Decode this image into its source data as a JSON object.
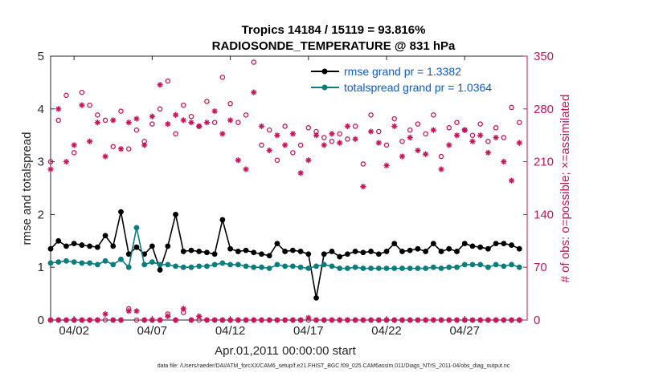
{
  "chart_data": {
    "type": "line",
    "title": "Tropics 14184 / 15119 = 93.816%",
    "subtitle": "RADIOSONDE_TEMPERATURE @ 831 hPa",
    "xlabel": "Apr.01,2011 00:00:00 start",
    "ylabel": "rmse and totalspread",
    "ylabel_right": "# of obs: o=possible; ×=assimilated",
    "footnote": "data file: /Users/raeder/DAI/ATM_forcXX/CAM6_setup/f.e21.FHIST_BGC.f09_025.CAM6assim.011/Diags_NTrS_2011-04/obs_diag_output.nc",
    "xlim": [
      0.5,
      31
    ],
    "ylim": [
      0,
      5
    ],
    "ylim_right": [
      0,
      350
    ],
    "x_ticks": [
      2,
      7,
      12,
      17,
      22,
      27
    ],
    "x_tick_labels": [
      "04/02",
      "04/07",
      "04/12",
      "04/17",
      "04/22",
      "04/27"
    ],
    "y_ticks": [
      0,
      1,
      2,
      3,
      4,
      5
    ],
    "y_ticks_right": [
      0,
      70,
      140,
      210,
      280,
      350
    ],
    "x": [
      0.5,
      1,
      1.5,
      2,
      2.5,
      3,
      3.5,
      4,
      4.5,
      5,
      5.5,
      6,
      6.5,
      7,
      7.5,
      8,
      8.5,
      9,
      9.5,
      10,
      10.5,
      11,
      11.5,
      12,
      12.5,
      13,
      13.5,
      14,
      14.5,
      15,
      15.5,
      16,
      16.5,
      17,
      17.5,
      18,
      18.5,
      19,
      19.5,
      20,
      20.5,
      21,
      21.5,
      22,
      22.5,
      23,
      23.5,
      24,
      24.5,
      25,
      25.5,
      26,
      26.5,
      27,
      27.5,
      28,
      28.5,
      29,
      29.5,
      30,
      30.5
    ],
    "series": [
      {
        "name": "rmse grand pr = 1.3382",
        "color": "#000000",
        "marker": "filled-circle",
        "values": [
          1.35,
          1.5,
          1.4,
          1.45,
          1.42,
          1.4,
          1.38,
          1.6,
          1.4,
          2.05,
          1.25,
          1.38,
          1.25,
          1.4,
          0.95,
          1.4,
          2.0,
          1.3,
          1.32,
          1.3,
          1.28,
          1.25,
          1.9,
          1.35,
          1.3,
          1.32,
          1.28,
          1.25,
          1.22,
          1.45,
          1.3,
          1.32,
          1.3,
          1.25,
          0.42,
          1.25,
          1.3,
          1.2,
          1.25,
          1.3,
          1.28,
          1.3,
          1.25,
          1.3,
          1.45,
          1.3,
          1.32,
          1.35,
          1.3,
          1.45,
          1.3,
          1.35,
          1.3,
          1.45,
          1.4,
          1.38,
          1.35,
          1.45,
          1.45,
          1.42,
          1.35
        ]
      },
      {
        "name": "totalspread grand pr = 1.0364",
        "color": "#0a7e7e",
        "marker": "filled-circle",
        "values": [
          1.08,
          1.1,
          1.12,
          1.1,
          1.08,
          1.08,
          1.05,
          1.12,
          1.05,
          1.15,
          1.0,
          1.75,
          1.05,
          1.1,
          1.05,
          1.05,
          1.02,
          1.0,
          1.0,
          1.02,
          1.02,
          1.05,
          1.08,
          1.05,
          1.05,
          1.02,
          1.0,
          1.0,
          0.98,
          1.05,
          1.02,
          1.02,
          1.0,
          0.98,
          1.02,
          1.05,
          1.02,
          0.98,
          0.98,
          1.0,
          0.98,
          0.98,
          0.98,
          0.98,
          0.98,
          0.98,
          0.98,
          0.98,
          0.98,
          1.0,
          0.98,
          1.0,
          1.0,
          1.05,
          1.05,
          1.05,
          1.0,
          1.05,
          1.02,
          1.05,
          1.0
        ]
      }
    ],
    "obs_possible": [
      210,
      265,
      298,
      222,
      302,
      285,
      272,
      265,
      230,
      277,
      227,
      252,
      237,
      260,
      280,
      317,
      247,
      285,
      270,
      257,
      290,
      262,
      322,
      287,
      262,
      272,
      342,
      232,
      252,
      212,
      257,
      222,
      232,
      255,
      250,
      242,
      237,
      247,
      240,
      257,
      207,
      272,
      250,
      232,
      267,
      237,
      252,
      260,
      247,
      272,
      217,
      255,
      262,
      252,
      245,
      260,
      237,
      255,
      242,
      282,
      262
    ],
    "obs_assimilated": [
      200,
      280,
      210,
      232,
      285,
      237,
      262,
      217,
      265,
      227,
      262,
      267,
      232,
      270,
      312,
      260,
      272,
      265,
      262,
      257,
      262,
      277,
      247,
      265,
      212,
      200,
      302,
      257,
      225,
      245,
      232,
      247,
      195,
      212,
      245,
      232,
      247,
      235,
      257,
      240,
      177,
      250,
      235,
      205,
      257,
      217,
      242,
      225,
      220,
      252,
      200,
      232,
      245,
      252,
      237,
      245,
      222,
      242,
      210,
      185,
      235
    ],
    "obs_bottom_possible_nonzero": {
      "x": [
        5.5,
        8,
        9
      ],
      "values": [
        15,
        8,
        10
      ]
    },
    "obs_bottom_assimilated_nonzero": {
      "x": [
        4,
        5.5,
        6,
        8,
        9,
        10,
        17
      ],
      "values": [
        8,
        12,
        12,
        5,
        15,
        5,
        3
      ]
    }
  },
  "colors": {
    "rmse": "#000000",
    "spread": "#0a7e7e",
    "obs": "#c8145a",
    "legend_text": "#0a5ad2"
  }
}
